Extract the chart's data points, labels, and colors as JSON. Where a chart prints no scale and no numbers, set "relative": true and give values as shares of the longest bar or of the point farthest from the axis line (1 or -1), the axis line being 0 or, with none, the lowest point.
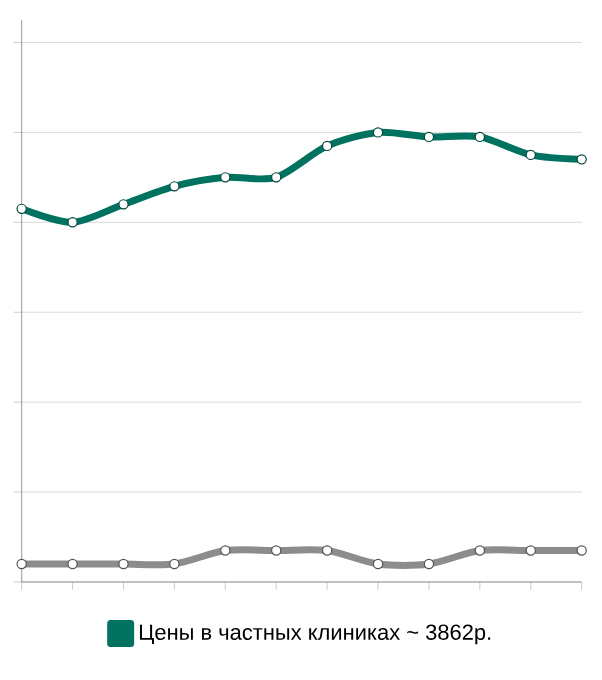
{
  "chart_data": {
    "type": "line",
    "relative": true,
    "grid": "y",
    "legend": "bottom",
    "marker": "circle",
    "line_style": "solid",
    "categories": [
      null,
      null,
      null,
      null,
      null,
      null,
      null,
      null,
      null,
      null,
      null,
      null
    ],
    "series": [
      {
        "name": "Цены в частных клиниках ~ 3862р.",
        "color": "#00725f",
        "values": [
          0.83,
          0.8,
          0.84,
          0.88,
          0.9,
          0.9,
          0.97,
          1,
          0.99,
          0.99,
          0.95,
          0.94
        ]
      },
      {
        "color": "#8c8c8c",
        "values": [
          0.04,
          0.04,
          0.04,
          0.04,
          0.07,
          0.07,
          0.07,
          0.04,
          0.04,
          0.07,
          0.07,
          0.07
        ]
      }
    ]
  }
}
